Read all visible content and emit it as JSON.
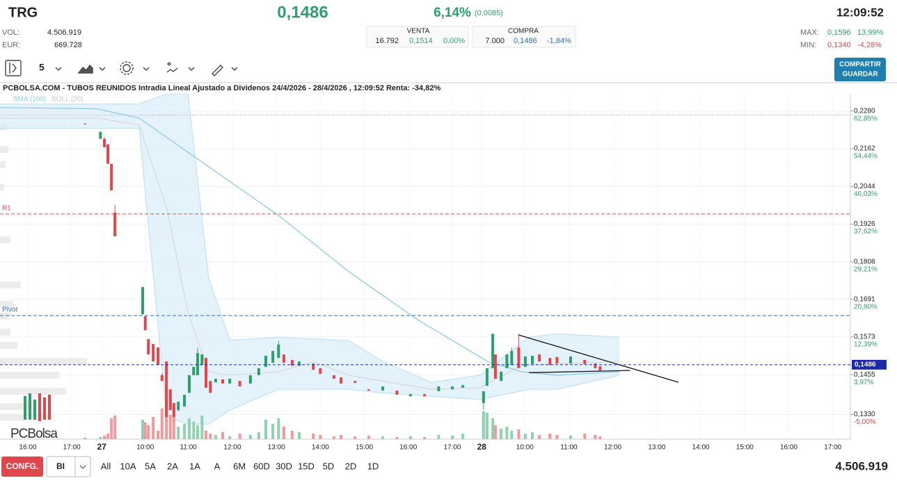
{
  "header": {
    "symbol": "TRG",
    "price": "0,1486",
    "change_pct": "6,14%",
    "change_abs": "(0,0085)",
    "time": "12:09:52",
    "vol_label": "VOL:",
    "vol": "4.506.919",
    "eur_label": "EUR:",
    "eur": "669.728",
    "sell": {
      "title": "VENTA",
      "qty": "16.792",
      "price": "0,1514",
      "pct": "0,00%"
    },
    "buy": {
      "title": "COMPRA",
      "qty": "7.000",
      "price": "0,1486",
      "pct": "-1,84%"
    },
    "max_label": "MAX:",
    "max": "0,1596",
    "max_pct": "13,99%",
    "min_label": "MIN:",
    "min": "0,1340",
    "min_pct": "-4,28%"
  },
  "toolbar": {
    "interval": "5",
    "share": "COMPARTIR",
    "save": "GUARDAR"
  },
  "chart": {
    "type": "candlestick",
    "title": "PCBOLSA.COM - TUBOS REUNIDOS Intradia Lineal Ajustado a Dividenos 24/4/2026 - 28/4/2026 , 12:09:52 Renta: -34,82%",
    "logo": "PCBolsa",
    "xlim": [
      -0.633,
      18.7
    ],
    "ylim": [
      0.1253,
      0.2334
    ],
    "volume_lim": [
      0,
      100
    ],
    "yticks": [
      {
        "value": 0.228,
        "label": "0,2280"
      },
      {
        "value": 0.2162,
        "label": "0,2162"
      },
      {
        "value": 0.2044,
        "label": "0,2044"
      },
      {
        "value": 0.1926,
        "label": "0,1926"
      },
      {
        "value": 0.1808,
        "label": "0,1808"
      },
      {
        "value": 0.1691,
        "label": "0,1691"
      },
      {
        "value": 0.1573,
        "label": "0,1573"
      },
      {
        "value": 0.1455,
        "label": "0,1455"
      },
      {
        "value": 0.133,
        "label": "0,1330"
      }
    ],
    "ytick_pct": [
      "62,85%",
      "54,44%",
      "46,03%",
      "37,62%",
      "29,21%",
      "20,80%",
      "12,39%",
      "3,97%",
      "-5,00%"
    ],
    "xticks": [
      {
        "value": 0,
        "label": "16:00"
      },
      {
        "value": 1,
        "label": "17:00"
      },
      {
        "value": 1.68,
        "label": "27"
      },
      {
        "value": 2.67,
        "label": "10:00"
      },
      {
        "value": 3.65,
        "label": "11:00"
      },
      {
        "value": 4.65,
        "label": "12:00"
      },
      {
        "value": 5.65,
        "label": "13:00"
      },
      {
        "value": 6.65,
        "label": "14:00"
      },
      {
        "value": 7.65,
        "label": "15:00"
      },
      {
        "value": 8.65,
        "label": "16:00"
      },
      {
        "value": 9.65,
        "label": "17:00"
      },
      {
        "value": 10.32,
        "label": "28"
      },
      {
        "value": 11.3,
        "label": "10:00"
      },
      {
        "value": 12.3,
        "label": "11:00"
      },
      {
        "value": 13.3,
        "label": "12:00"
      },
      {
        "value": 14.3,
        "label": "13:00"
      },
      {
        "value": 15.3,
        "label": "14:00"
      },
      {
        "value": 16.3,
        "label": "15:00"
      },
      {
        "value": 17.3,
        "label": "16:00"
      },
      {
        "value": 18.3,
        "label": "17:00"
      }
    ],
    "up_color": "#2e9e6e",
    "down_color": "#e0474c",
    "last_price": {
      "value": 0.1486,
      "label": "0,1486",
      "color": "#1a2aa8"
    },
    "ref_line": 0.2267,
    "levels": [
      {
        "name": "R1",
        "value": 0.1958,
        "color": "#e0474c"
      },
      {
        "name": "Pivot",
        "value": 0.164,
        "color": "#2f6fbf"
      }
    ],
    "sma": {
      "name": "SMA (100)",
      "color": "#8ecae6",
      "x": [
        -0.63,
        1.58,
        2.53,
        4.11,
        5.7,
        7.28,
        8.86,
        9.65,
        10.44,
        11.23,
        12.03,
        13.45
      ],
      "values": [
        0.2291,
        0.2287,
        0.2258,
        0.2106,
        0.1953,
        0.1779,
        0.1627,
        0.1562,
        0.1497,
        0.1464,
        0.1453,
        0.1464
      ]
    },
    "boll": {
      "name": "BOLL (20)",
      "color": "#d6d6d6",
      "band_color": "#dbeefa",
      "x": [
        -0.63,
        1.58,
        2.53,
        3.16,
        3.64,
        4.11,
        4.59,
        5.7,
        7.28,
        8.07,
        9.18,
        10.28,
        11.39,
        12.03,
        13.45
      ],
      "upper": [
        0.2302,
        0.2302,
        0.2302,
        0.2334,
        0.2334,
        0.1758,
        0.1562,
        0.1572,
        0.1562,
        0.1496,
        0.1431,
        0.1453,
        0.1572,
        0.1583,
        0.1572
      ],
      "lower": [
        0.2226,
        0.2226,
        0.2226,
        0.1322,
        0.13,
        0.13,
        0.1344,
        0.1409,
        0.1409,
        0.1398,
        0.1387,
        0.1377,
        0.1409,
        0.1409,
        0.1453
      ],
      "mid_x": [
        -0.63,
        1.58,
        2.53,
        3.16,
        3.64,
        4.11,
        4.59,
        5.7,
        6.49,
        7.28,
        9.18,
        10.28,
        11.23,
        13.45
      ],
      "mid": [
        0.2258,
        0.2258,
        0.2236,
        0.1975,
        0.1649,
        0.1464,
        0.1453,
        0.1464,
        0.1496,
        0.1453,
        0.1409,
        0.1414,
        0.1485,
        0.1496
      ]
    },
    "trendlines": [
      {
        "x": [
          11.16,
          14.79
        ],
        "values": [
          0.1579,
          0.1431
        ]
      },
      {
        "x": [
          11.39,
          13.69
        ],
        "values": [
          0.1461,
          0.1468
        ]
      }
    ],
    "volume_profile": {
      "prices": [
        0.223,
        0.216,
        0.2112,
        0.2041,
        0.1877,
        0.1736,
        0.1675,
        0.1638,
        0.1588,
        0.1546,
        0.1496,
        0.1453,
        0.1403,
        0.1355,
        0.1322
      ],
      "sizes": [
        10,
        12,
        8,
        6,
        15,
        30,
        20,
        15,
        15,
        25,
        125,
        85,
        95,
        50,
        70
      ]
    },
    "candles": [
      [
        1.3,
        0.2241,
        0.2241,
        0.2237,
        0.2239
      ],
      [
        1.65,
        0.2193,
        0.2215,
        0.2193,
        0.2215
      ],
      [
        1.74,
        0.2193,
        0.2198,
        0.2167,
        0.2167
      ],
      [
        1.82,
        0.2176,
        0.2176,
        0.2115,
        0.2115
      ],
      [
        1.9,
        0.2115,
        0.2115,
        0.2032,
        0.2032
      ],
      [
        1.98,
        0.1962,
        0.1986,
        0.1888,
        0.1888
      ],
      [
        2.61,
        0.1644,
        0.1729,
        0.1644,
        0.1729
      ],
      [
        2.67,
        0.1638,
        0.1638,
        0.1594,
        0.1594
      ],
      [
        2.74,
        0.1566,
        0.1566,
        0.1518,
        0.1518
      ],
      [
        2.85,
        0.1551,
        0.1551,
        0.1496,
        0.1496
      ],
      [
        2.96,
        0.154,
        0.154,
        0.1485,
        0.1485
      ],
      [
        3.05,
        0.1453,
        0.146,
        0.1435,
        0.1435
      ],
      [
        3.15,
        0.1496,
        0.1496,
        0.1322,
        0.1322
      ],
      [
        3.24,
        0.1409,
        0.1409,
        0.1344,
        0.1344
      ],
      [
        3.32,
        0.1366,
        0.1366,
        0.1322,
        0.1322
      ],
      [
        3.42,
        0.1344,
        0.137,
        0.134,
        0.137
      ],
      [
        3.56,
        0.1355,
        0.1392,
        0.1355,
        0.1392
      ],
      [
        3.67,
        0.1398,
        0.1453,
        0.1398,
        0.1453
      ],
      [
        3.77,
        0.1453,
        0.1479,
        0.1453,
        0.1479
      ],
      [
        3.86,
        0.1453,
        0.154,
        0.1453,
        0.1522
      ],
      [
        3.96,
        0.1485,
        0.1518,
        0.1485,
        0.1518
      ],
      [
        4.05,
        0.1507,
        0.1507,
        0.1414,
        0.1414
      ],
      [
        4.15,
        0.1435,
        0.1435,
        0.1398,
        0.1398
      ],
      [
        4.27,
        0.1431,
        0.1442,
        0.1431,
        0.1442
      ],
      [
        4.43,
        0.144,
        0.144,
        0.1427,
        0.1427
      ],
      [
        4.59,
        0.1427,
        0.1442,
        0.1427,
        0.1442
      ],
      [
        4.82,
        0.1435,
        0.1435,
        0.1418,
        0.1418
      ],
      [
        5.06,
        0.1427,
        0.1453,
        0.1427,
        0.1453
      ],
      [
        5.25,
        0.1453,
        0.1475,
        0.1453,
        0.1475
      ],
      [
        5.41,
        0.1479,
        0.1514,
        0.1479,
        0.1514
      ],
      [
        5.57,
        0.1492,
        0.1529,
        0.1492,
        0.1529
      ],
      [
        5.7,
        0.1507,
        0.156,
        0.1507,
        0.1549
      ],
      [
        5.82,
        0.1518,
        0.1518,
        0.1492,
        0.1492
      ],
      [
        6.01,
        0.1501,
        0.1501,
        0.1483,
        0.1483
      ],
      [
        6.17,
        0.1483,
        0.1496,
        0.1483,
        0.1496
      ],
      [
        6.49,
        0.149,
        0.149,
        0.147,
        0.147
      ],
      [
        6.65,
        0.1475,
        0.1475,
        0.1457,
        0.1457
      ],
      [
        6.96,
        0.1453,
        0.1453,
        0.1442,
        0.1442
      ],
      [
        7.12,
        0.1446,
        0.1446,
        0.1427,
        0.1427
      ],
      [
        7.44,
        0.1435,
        0.1435,
        0.1429,
        0.1429
      ],
      [
        7.75,
        0.1409,
        0.1409,
        0.1405,
        0.1405
      ],
      [
        8.07,
        0.1405,
        0.1418,
        0.1405,
        0.1418
      ],
      [
        8.39,
        0.1405,
        0.1405,
        0.1392,
        0.1392
      ],
      [
        8.7,
        0.1387,
        0.1394,
        0.1387,
        0.1394
      ],
      [
        9.02,
        0.1394,
        0.1394,
        0.1387,
        0.1387
      ],
      [
        9.34,
        0.1403,
        0.1418,
        0.1403,
        0.1418
      ],
      [
        9.65,
        0.1409,
        0.1418,
        0.1409,
        0.1418
      ],
      [
        9.89,
        0.1414,
        0.1422,
        0.1414,
        0.1422
      ],
      [
        10.36,
        0.1366,
        0.1403,
        0.1344,
        0.1403
      ],
      [
        10.44,
        0.142,
        0.1475,
        0.142,
        0.1475
      ],
      [
        10.57,
        0.1475,
        0.1583,
        0.1475,
        0.1583
      ],
      [
        10.63,
        0.1518,
        0.1518,
        0.1442,
        0.1442
      ],
      [
        10.76,
        0.1435,
        0.1464,
        0.1435,
        0.1464
      ],
      [
        10.89,
        0.1475,
        0.1518,
        0.1475,
        0.1518
      ],
      [
        11.0,
        0.1485,
        0.154,
        0.1485,
        0.1529
      ],
      [
        11.16,
        0.154,
        0.1583,
        0.1475,
        0.1475
      ],
      [
        11.31,
        0.1479,
        0.1512,
        0.1479,
        0.1512
      ],
      [
        11.47,
        0.1488,
        0.1514,
        0.1488,
        0.1514
      ],
      [
        11.63,
        0.1518,
        0.1518,
        0.1496,
        0.1496
      ],
      [
        11.87,
        0.1507,
        0.1507,
        0.1485,
        0.1485
      ],
      [
        12.03,
        0.151,
        0.151,
        0.149,
        0.149
      ],
      [
        12.34,
        0.149,
        0.1512,
        0.149,
        0.1512
      ],
      [
        12.66,
        0.1501,
        0.1501,
        0.1488,
        0.1488
      ],
      [
        12.9,
        0.149,
        0.149,
        0.1475,
        0.1475
      ],
      [
        13.01,
        0.1481,
        0.1481,
        0.1468,
        0.1468
      ]
    ],
    "volumes": [
      2,
      3,
      5,
      8,
      30,
      34,
      28,
      24,
      20,
      32,
      12,
      44,
      75,
      35,
      40,
      18,
      22,
      30,
      25,
      20,
      34,
      12,
      8,
      6,
      10,
      4,
      8,
      6,
      10,
      28,
      22,
      30,
      18,
      12,
      10,
      8,
      6,
      4,
      6,
      4,
      5,
      4,
      3,
      4,
      3,
      6,
      5,
      8,
      40,
      38,
      30,
      20,
      15,
      18,
      12,
      14,
      8,
      10,
      6,
      8,
      6,
      5,
      8,
      6,
      4
    ]
  },
  "footer": {
    "config": "CONFG.",
    "mode": "BI",
    "periods": [
      "All",
      "10A",
      "5A",
      "2A",
      "1A",
      "A",
      "6M",
      "60D",
      "30D",
      "15D",
      "5D",
      "2D",
      "1D"
    ],
    "volume": "4.506.919"
  }
}
